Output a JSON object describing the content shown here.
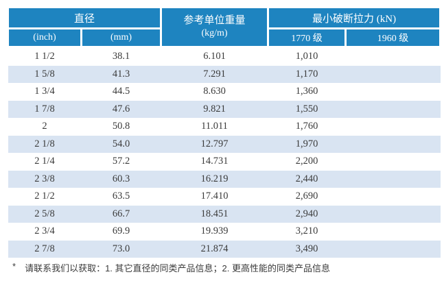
{
  "table": {
    "header": {
      "diameter": "直径",
      "inch": "(inch)",
      "mm": "(mm)",
      "unit_weight_line1": "参考单位重量",
      "unit_weight_line2": "(kg/m)",
      "breaking_force": "最小破断拉力 (kN)",
      "grade_1770": "1770 级",
      "grade_1960": "1960 级"
    },
    "columns": [
      "inch",
      "mm",
      "kg_m",
      "kn_1770",
      "kn_1960"
    ],
    "rows": [
      [
        "1 1/2",
        "38.1",
        "6.101",
        "1,010",
        ""
      ],
      [
        "1 5/8",
        "41.3",
        "7.291",
        "1,170",
        ""
      ],
      [
        "1 3/4",
        "44.5",
        "8.630",
        "1,360",
        ""
      ],
      [
        "1 7/8",
        "47.6",
        "9.821",
        "1,550",
        ""
      ],
      [
        "2",
        "50.8",
        "11.011",
        "1,760",
        ""
      ],
      [
        "2 1/8",
        "54.0",
        "12.797",
        "1,970",
        ""
      ],
      [
        "2 1/4",
        "57.2",
        "14.731",
        "2,200",
        ""
      ],
      [
        "2 3/8",
        "60.3",
        "16.219",
        "2,440",
        ""
      ],
      [
        "2 1/2",
        "63.5",
        "17.410",
        "2,690",
        ""
      ],
      [
        "2 5/8",
        "66.7",
        "18.451",
        "2,940",
        ""
      ],
      [
        "2 3/4",
        "69.9",
        "19.939",
        "3,210",
        ""
      ],
      [
        "2 7/8",
        "73.0",
        "21.874",
        "3,490",
        ""
      ]
    ]
  },
  "footnote": {
    "marker": "*",
    "text": "请联系我们以获取：1. 其它直径的同类产品信息；2. 更高性能的同类产品信息"
  },
  "colors": {
    "header_blue": "#1e84c0",
    "stripe_blue": "#d9e4f2",
    "text_dark": "#3a3a3a"
  }
}
